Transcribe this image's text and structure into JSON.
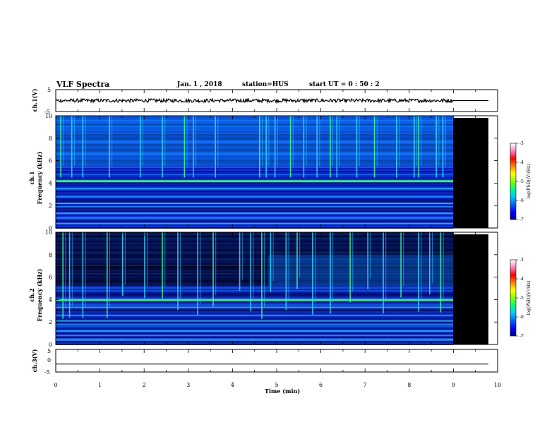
{
  "header": {
    "title": "VLF Spectra",
    "date": "Jan. 1 , 2018",
    "station": "station=HUS",
    "start_ut": "start UT = 0 : 50 : 2"
  },
  "labels": {
    "ch1_wave": "ch.1(V)",
    "ch1_spec_a": "ch.1",
    "ch1_spec_b": "Frequency (kHz)",
    "ch2_spec_a": "ch.2",
    "ch2_spec_b": "Frequency (kHz)",
    "ch3_wave": "ch.3(V)",
    "colorbar": "log(PSD)(V²/Hz)",
    "xlabel": "Time (min)"
  },
  "colors": {
    "black": "#000000",
    "cmap": [
      "#00008a",
      "#0000ff",
      "#0064ff",
      "#00c8ff",
      "#00ff80",
      "#80ff00",
      "#ffff00",
      "#ff8000",
      "#ff0000",
      "#ff80c0",
      "#ffffff"
    ]
  },
  "chart_data": [
    {
      "type": "line",
      "panel": "ch1_waveform",
      "ylabel": "ch.1(V)",
      "ylim": [
        -5,
        5
      ],
      "yticks": [
        "5",
        "-5"
      ],
      "x_range_min": [
        0,
        9
      ],
      "approx_value": 0,
      "note_visible": "black oscillating trace near 0 V"
    },
    {
      "type": "heatmap",
      "panel": "ch1_spectrogram",
      "ylabel": "Frequency (kHz)",
      "ylim": [
        0,
        10
      ],
      "yticks": [
        "0",
        "2",
        "4",
        "6",
        "8",
        "10"
      ],
      "data_end_min": 9,
      "colorbar": {
        "min": -7,
        "max": -3,
        "ticks": [
          "-3",
          "-4",
          "-5",
          "-6",
          "-7"
        ],
        "label": "log(PSD)(V²/Hz)"
      },
      "narrowband_lines_khz": [
        4.2,
        3.5,
        2.8,
        2.2,
        1.9,
        1.3,
        0.9,
        0.4
      ],
      "burst_times_min": [
        0.1,
        0.35,
        0.6,
        1.2,
        1.9,
        2.4,
        2.9,
        3.1,
        3.6,
        4.6,
        4.75,
        4.95,
        5.3,
        5.6,
        5.9,
        6.2,
        6.35,
        6.8,
        7.2,
        7.7,
        8.1,
        8.2,
        8.6,
        8.75
      ]
    },
    {
      "type": "heatmap",
      "panel": "ch2_spectrogram",
      "ylabel": "Frequency (kHz)",
      "ylim": [
        0,
        10
      ],
      "yticks": [
        "0",
        "2",
        "4",
        "6",
        "8",
        "10"
      ],
      "data_end_min": 9,
      "colorbar": {
        "min": -7,
        "max": -3,
        "ticks": [
          "-3",
          "-4",
          "-5",
          "-6",
          "-7"
        ],
        "label": "log(PSD)(V²/Hz)"
      },
      "narrowband_lines_khz": [
        4.0,
        3.3,
        2.6,
        2.1,
        1.8,
        1.2,
        0.8,
        0.4
      ],
      "burst_times_min": [
        0.15,
        0.3,
        0.6,
        1.15,
        1.5,
        2.0,
        2.4,
        2.75,
        3.2,
        3.55,
        4.15,
        4.4,
        4.65,
        4.85,
        5.2,
        5.45,
        5.8,
        6.2,
        6.65,
        7.05,
        7.4,
        7.8,
        8.2,
        8.45,
        8.7
      ]
    },
    {
      "type": "line",
      "panel": "ch3_waveform",
      "ylabel": "ch.3(V)",
      "ylim": [
        -5,
        5
      ],
      "yticks": [
        "5",
        "0",
        "-5"
      ],
      "x_range_min": [
        0,
        10
      ],
      "approx_value": -1.5
    }
  ],
  "x_axis": {
    "label": "Time (min)",
    "min": 0,
    "max": 10,
    "ticks": [
      "0",
      "1",
      "2",
      "3",
      "4",
      "5",
      "6",
      "7",
      "8",
      "9",
      "10"
    ]
  }
}
